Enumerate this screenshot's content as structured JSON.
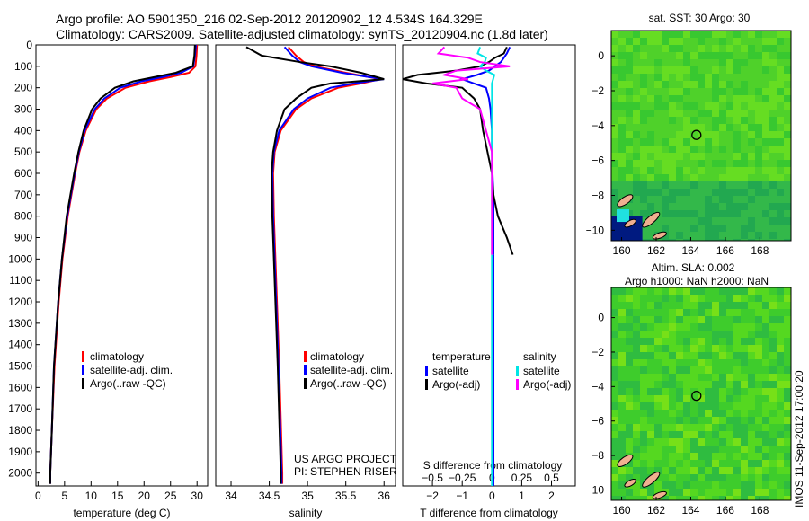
{
  "title_line1": "Argo profile: AO 5901350_216 02-Sep-2012 20120902_12 4.534S 164.329E",
  "title_line2": "Climatology: CARS2009. Satellite-adjusted climatology: synTS_20120904.nc (1.8d later)",
  "side_stamp": "IMOS 11-Sep-2012 17:00:20",
  "colors": {
    "climatology": "#ff0000",
    "satellite": "#0000ff",
    "argo": "#000000",
    "sat_salinity": "#00e5e5",
    "argo_salinity": "#ff00ff"
  },
  "chart_data": [
    {
      "type": "line",
      "name": "temperature",
      "xlabel": "temperature (deg C)",
      "xlim": [
        -0.4,
        32
      ],
      "ylim": [
        0,
        2060
      ],
      "xticks": [
        "0",
        "5",
        "10",
        "15",
        "20",
        "25",
        "30"
      ],
      "yticks": [
        "0",
        "100",
        "200",
        "300",
        "400",
        "500",
        "600",
        "700",
        "800",
        "900",
        "1000",
        "1100",
        "1200",
        "1300",
        "1400",
        "1500",
        "1600",
        "1700",
        "1800",
        "1900",
        "2000"
      ],
      "legend": [
        "climatology",
        "satellite-adj. clim.",
        "Argo(..raw -QC)"
      ],
      "depth": [
        0,
        50,
        100,
        130,
        150,
        170,
        200,
        250,
        300,
        400,
        500,
        600,
        800,
        1000,
        1200,
        1500,
        1800,
        2000,
        2050
      ],
      "series": [
        {
          "name": "climatology",
          "values": [
            30,
            29.9,
            29.7,
            28.5,
            25,
            21,
            16.5,
            13,
            11,
            9,
            7.8,
            7,
            5.6,
            4.6,
            3.9,
            3.1,
            2.6,
            2.3,
            2.3
          ]
        },
        {
          "name": "satellite-adj. clim.",
          "values": [
            29.8,
            29.6,
            29.3,
            27,
            23.5,
            19.5,
            15.5,
            12.5,
            10.7,
            8.8,
            7.7,
            6.9,
            5.5,
            4.5,
            3.8,
            3.0,
            2.6,
            2.3,
            2.3
          ]
        },
        {
          "name": "Argo(..raw -QC)",
          "values": [
            29.6,
            29.5,
            29.2,
            26,
            22,
            18,
            14.5,
            11.8,
            10.2,
            8.6,
            7.6,
            6.8,
            5.4,
            4.5,
            3.8,
            3.0,
            2.6,
            2.3,
            2.3
          ]
        }
      ]
    },
    {
      "type": "line",
      "name": "salinity",
      "xlabel": "salinity",
      "xlim": [
        33.8,
        36.15
      ],
      "ylim": [
        0,
        2060
      ],
      "xticks": [
        "34",
        "34.5",
        "35",
        "35.5",
        "36"
      ],
      "legend": [
        "climatology",
        "satellite-adj. clim.",
        "Argo(..raw -QC)"
      ],
      "annotation": [
        "US ARGO PROJECT",
        "PI: STEPHEN RISER"
      ],
      "depth": [
        10,
        50,
        80,
        100,
        130,
        150,
        160,
        180,
        200,
        250,
        300,
        400,
        500,
        600,
        800,
        1000,
        1500,
        2000,
        2050
      ],
      "series": [
        {
          "name": "climatology",
          "values": [
            34.75,
            34.85,
            34.95,
            35.1,
            35.5,
            35.8,
            35.95,
            35.7,
            35.4,
            35.05,
            34.85,
            34.65,
            34.57,
            34.55,
            34.56,
            34.58,
            34.63,
            34.67,
            34.67
          ]
        },
        {
          "name": "satellite-adj. clim.",
          "values": [
            34.7,
            34.8,
            34.9,
            35.05,
            35.45,
            35.8,
            36.0,
            35.6,
            35.3,
            35.0,
            34.82,
            34.63,
            34.56,
            34.54,
            34.55,
            34.57,
            34.62,
            34.66,
            34.66
          ]
        },
        {
          "name": "Argo(..raw -QC)",
          "values": [
            34.2,
            34.4,
            34.9,
            35.3,
            35.7,
            35.9,
            36.0,
            35.3,
            35.05,
            34.85,
            34.7,
            34.6,
            34.55,
            34.53,
            34.54,
            34.56,
            34.61,
            34.65,
            34.65
          ]
        }
      ]
    },
    {
      "type": "line",
      "name": "difference",
      "xlabel": "T difference from climatology",
      "top_label": "S difference from climatology",
      "xlim": [
        -3,
        2.8
      ],
      "ylim": [
        0,
        2060
      ],
      "xticks": [
        "-2",
        "-1",
        "0",
        "1",
        "2"
      ],
      "sticks": [
        "-0.5",
        "-0.25",
        "0",
        "0.25",
        "0.5"
      ],
      "legend_headers": [
        "temperature",
        "salinity"
      ],
      "legend": [
        "satellite",
        "Argo(-adj)",
        "satellite",
        "Argo(-adj)"
      ],
      "depth": [
        10,
        40,
        60,
        80,
        100,
        120,
        140,
        160,
        180,
        200,
        250,
        300,
        400,
        500,
        600,
        700,
        800,
        900,
        980
      ],
      "series": [
        {
          "name": "T satellite",
          "values": [
            0.6,
            0.5,
            0.4,
            0.3,
            0.1,
            -0.1,
            -0.5,
            -1.0,
            -0.6,
            -0.2,
            -0.1,
            -0.05,
            0,
            0,
            0.02,
            0.05,
            0.05,
            0.05,
            0.05
          ]
        },
        {
          "name": "T Argo(-adj)",
          "values": [
            0.5,
            0.4,
            0.1,
            -0.1,
            -0.4,
            -1.2,
            -2.5,
            -3.0,
            -2.2,
            -1.0,
            -0.6,
            -0.4,
            -0.3,
            -0.15,
            0,
            0.05,
            0.2,
            0.5,
            0.7
          ]
        },
        {
          "name": "S satellite",
          "values": [
            -0.1,
            -0.12,
            -0.05,
            -0.06,
            -0.1,
            -0.05,
            0.02,
            0.01,
            0,
            0,
            0,
            0,
            0,
            0,
            0,
            0,
            0,
            0,
            0
          ]
        },
        {
          "name": "S Argo(-adj)",
          "values": [
            -0.4,
            -0.45,
            -0.2,
            -0.1,
            0.15,
            -0.3,
            -0.4,
            -0.2,
            -0.5,
            -0.3,
            -0.25,
            -0.1,
            -0.05,
            0,
            0,
            0,
            0,
            0,
            0
          ]
        }
      ]
    },
    {
      "type": "heatmap",
      "name": "sst-map",
      "title": "sat. SST: 30 Argo: 30",
      "xlim": [
        159.4,
        169.8
      ],
      "ylim": [
        -10.6,
        1.45
      ],
      "xticks": [
        "160",
        "162",
        "164",
        "166",
        "168"
      ],
      "yticks": [
        "0",
        "-2",
        "-4",
        "-6",
        "-8",
        "-10"
      ],
      "argo_position": [
        164.329,
        -4.534
      ]
    },
    {
      "type": "heatmap",
      "name": "sla-map",
      "title": "Altim. SLA: 0.002",
      "subtitle": "Argo h1000: NaN h2000: NaN",
      "xlim": [
        159.4,
        169.8
      ],
      "ylim": [
        -10.6,
        1.75
      ],
      "xticks": [
        "160",
        "162",
        "164",
        "166",
        "168"
      ],
      "yticks": [
        "0",
        "-2",
        "-4",
        "-6",
        "-8",
        "-10"
      ],
      "argo_position": [
        164.329,
        -4.534
      ]
    }
  ]
}
